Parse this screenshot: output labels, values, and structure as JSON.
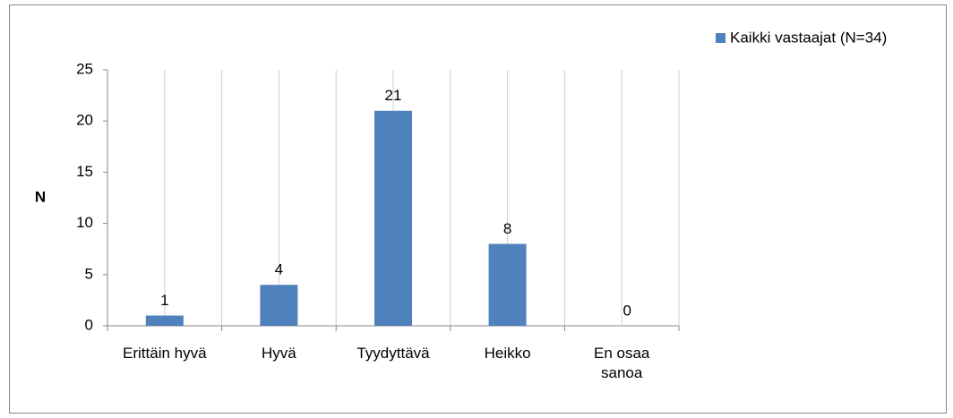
{
  "chart_data": {
    "type": "bar",
    "y_label": "N",
    "categories": [
      "Erittäin hyvä",
      "Hyvä",
      "Tyydyttävä",
      "Heikko",
      "En osaa sanoa"
    ],
    "series": [
      {
        "name": "Kaikki vastaajat (N=34)",
        "color": "#4f81bd",
        "values": [
          1,
          4,
          21,
          8,
          0
        ]
      }
    ],
    "ylim": [
      0,
      25
    ],
    "yticks": [
      0,
      5,
      10,
      15,
      20,
      25
    ],
    "legend": "top-right",
    "grid": true
  }
}
